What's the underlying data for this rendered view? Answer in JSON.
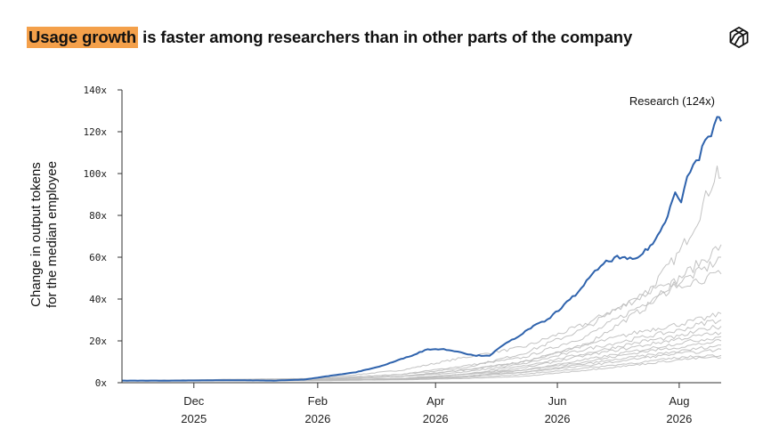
{
  "headline": {
    "highlight": "Usage growth",
    "rest": " is faster among researchers than in other parts of the company"
  },
  "brand": {
    "icon": "openai-knot-icon"
  },
  "colors": {
    "research": "#2f63ad",
    "others": "#bdbdbd",
    "highlight": "#f4a04a",
    "axis": "#333333"
  },
  "chart_data": {
    "type": "line",
    "ylabel": [
      "Change in output tokens",
      "for the median employee"
    ],
    "ylim": [
      0,
      140
    ],
    "yticks": [
      0,
      20,
      40,
      60,
      80,
      100,
      120,
      140
    ],
    "ytick_labels": [
      "0x",
      "20x",
      "40x",
      "60x",
      "80x",
      "100x",
      "120x",
      "140x"
    ],
    "xlim": [
      "2025-10-26",
      "2026-08-22"
    ],
    "xticks": [
      {
        "date": "2025-12-01",
        "line1": "Dec",
        "line2": "2025"
      },
      {
        "date": "2026-02-01",
        "line1": "Feb",
        "line2": "2026"
      },
      {
        "date": "2026-04-01",
        "line1": "Apr",
        "line2": "2026"
      },
      {
        "date": "2026-06-01",
        "line1": "Jun",
        "line2": "2026"
      },
      {
        "date": "2026-08-01",
        "line1": "Aug",
        "line2": "2026"
      }
    ],
    "annotations": [
      {
        "text": "Research (124x)",
        "series": "Research"
      }
    ],
    "grid": false,
    "highlight_series": {
      "name": "Research",
      "points": [
        [
          "2025-10-26",
          1
        ],
        [
          "2025-11-20",
          1
        ],
        [
          "2025-12-20",
          1.2
        ],
        [
          "2026-01-10",
          1
        ],
        [
          "2026-01-25",
          1.5
        ],
        [
          "2026-02-05",
          3
        ],
        [
          "2026-02-20",
          5
        ],
        [
          "2026-03-05",
          8
        ],
        [
          "2026-03-20",
          13
        ],
        [
          "2026-03-28",
          16
        ],
        [
          "2026-04-05",
          16
        ],
        [
          "2026-04-12",
          15
        ],
        [
          "2026-04-20",
          13
        ],
        [
          "2026-04-28",
          13
        ],
        [
          "2026-05-05",
          18
        ],
        [
          "2026-05-12",
          22
        ],
        [
          "2026-05-20",
          27
        ],
        [
          "2026-05-27",
          30
        ],
        [
          "2026-06-03",
          36
        ],
        [
          "2026-06-10",
          42
        ],
        [
          "2026-06-17",
          50
        ],
        [
          "2026-06-24",
          57
        ],
        [
          "2026-07-01",
          60
        ],
        [
          "2026-07-06",
          59
        ],
        [
          "2026-07-10",
          59
        ],
        [
          "2026-07-15",
          63
        ],
        [
          "2026-07-20",
          68
        ],
        [
          "2026-07-25",
          77
        ],
        [
          "2026-07-30",
          92
        ],
        [
          "2026-08-02",
          87
        ],
        [
          "2026-08-05",
          98
        ],
        [
          "2026-08-08",
          104
        ],
        [
          "2026-08-11",
          108
        ],
        [
          "2026-08-14",
          116
        ],
        [
          "2026-08-17",
          119
        ],
        [
          "2026-08-20",
          128
        ],
        [
          "2026-08-22",
          125
        ]
      ]
    },
    "series": [
      {
        "points": [
          [
            "2025-10-26",
            1
          ],
          [
            "2026-02-01",
            2
          ],
          [
            "2026-03-15",
            6
          ],
          [
            "2026-04-15",
            12
          ],
          [
            "2026-05-15",
            17
          ],
          [
            "2026-06-15",
            28
          ],
          [
            "2026-07-15",
            42
          ],
          [
            "2026-08-01",
            62
          ],
          [
            "2026-08-10",
            78
          ],
          [
            "2026-08-20",
            102
          ],
          [
            "2026-08-22",
            98
          ]
        ]
      },
      {
        "points": [
          [
            "2025-10-26",
            1
          ],
          [
            "2026-02-01",
            2
          ],
          [
            "2026-03-15",
            4
          ],
          [
            "2026-04-15",
            8
          ],
          [
            "2026-05-15",
            12
          ],
          [
            "2026-06-15",
            22
          ],
          [
            "2026-07-15",
            38
          ],
          [
            "2026-08-01",
            50
          ],
          [
            "2026-08-15",
            60
          ],
          [
            "2026-08-22",
            66
          ]
        ]
      },
      {
        "points": [
          [
            "2025-10-26",
            1
          ],
          [
            "2026-02-01",
            1.5
          ],
          [
            "2026-03-15",
            3
          ],
          [
            "2026-04-15",
            6
          ],
          [
            "2026-05-15",
            10
          ],
          [
            "2026-06-15",
            18
          ],
          [
            "2026-07-15",
            36
          ],
          [
            "2026-08-01",
            48
          ],
          [
            "2026-08-15",
            55
          ],
          [
            "2026-08-22",
            60
          ]
        ]
      },
      {
        "points": [
          [
            "2025-10-26",
            1
          ],
          [
            "2026-02-01",
            1.5
          ],
          [
            "2026-03-15",
            4
          ],
          [
            "2026-04-15",
            7
          ],
          [
            "2026-05-15",
            14
          ],
          [
            "2026-06-15",
            26
          ],
          [
            "2026-07-15",
            44
          ],
          [
            "2026-08-01",
            47
          ],
          [
            "2026-08-15",
            50
          ],
          [
            "2026-08-22",
            52
          ]
        ]
      },
      {
        "points": [
          [
            "2025-10-26",
            1
          ],
          [
            "2026-02-01",
            1.5
          ],
          [
            "2026-03-15",
            3
          ],
          [
            "2026-04-15",
            6
          ],
          [
            "2026-05-15",
            10
          ],
          [
            "2026-06-15",
            18
          ],
          [
            "2026-07-15",
            25
          ],
          [
            "2026-08-01",
            28
          ],
          [
            "2026-08-15",
            31
          ],
          [
            "2026-08-22",
            33
          ]
        ]
      },
      {
        "points": [
          [
            "2025-10-26",
            1
          ],
          [
            "2026-02-01",
            1.3
          ],
          [
            "2026-03-15",
            3
          ],
          [
            "2026-04-15",
            5
          ],
          [
            "2026-05-15",
            9
          ],
          [
            "2026-06-15",
            16
          ],
          [
            "2026-07-15",
            22
          ],
          [
            "2026-08-01",
            25
          ],
          [
            "2026-08-15",
            29
          ],
          [
            "2026-08-22",
            30
          ]
        ]
      },
      {
        "points": [
          [
            "2025-10-26",
            1
          ],
          [
            "2026-02-01",
            1.2
          ],
          [
            "2026-03-15",
            2
          ],
          [
            "2026-04-15",
            4
          ],
          [
            "2026-05-15",
            8
          ],
          [
            "2026-06-15",
            14
          ],
          [
            "2026-07-15",
            20
          ],
          [
            "2026-08-01",
            22
          ],
          [
            "2026-08-15",
            26
          ],
          [
            "2026-08-22",
            27
          ]
        ]
      },
      {
        "points": [
          [
            "2025-10-26",
            1
          ],
          [
            "2026-02-01",
            1.2
          ],
          [
            "2026-03-15",
            2
          ],
          [
            "2026-04-15",
            4
          ],
          [
            "2026-05-15",
            7
          ],
          [
            "2026-06-15",
            13
          ],
          [
            "2026-07-15",
            18
          ],
          [
            "2026-08-01",
            21
          ],
          [
            "2026-08-15",
            23
          ],
          [
            "2026-08-22",
            24
          ]
        ]
      },
      {
        "points": [
          [
            "2025-10-26",
            1
          ],
          [
            "2026-02-01",
            1.2
          ],
          [
            "2026-03-15",
            2
          ],
          [
            "2026-04-15",
            4
          ],
          [
            "2026-05-15",
            6
          ],
          [
            "2026-06-15",
            11
          ],
          [
            "2026-07-15",
            16
          ],
          [
            "2026-08-01",
            19
          ],
          [
            "2026-08-15",
            21
          ],
          [
            "2026-08-22",
            22
          ]
        ]
      },
      {
        "points": [
          [
            "2025-10-26",
            1
          ],
          [
            "2026-02-01",
            1.1
          ],
          [
            "2026-03-15",
            2
          ],
          [
            "2026-04-15",
            3
          ],
          [
            "2026-05-15",
            6
          ],
          [
            "2026-06-15",
            10
          ],
          [
            "2026-07-15",
            15
          ],
          [
            "2026-08-01",
            17
          ],
          [
            "2026-08-15",
            19
          ],
          [
            "2026-08-22",
            20
          ]
        ]
      },
      {
        "points": [
          [
            "2025-10-26",
            1
          ],
          [
            "2026-02-01",
            1.1
          ],
          [
            "2026-03-15",
            1.8
          ],
          [
            "2026-04-15",
            3
          ],
          [
            "2026-05-15",
            5
          ],
          [
            "2026-06-15",
            9
          ],
          [
            "2026-07-15",
            13
          ],
          [
            "2026-08-01",
            15
          ],
          [
            "2026-08-15",
            17
          ],
          [
            "2026-08-22",
            18
          ]
        ]
      },
      {
        "points": [
          [
            "2025-10-26",
            1
          ],
          [
            "2026-02-01",
            1.1
          ],
          [
            "2026-03-15",
            1.6
          ],
          [
            "2026-04-15",
            3
          ],
          [
            "2026-05-15",
            5
          ],
          [
            "2026-06-15",
            8
          ],
          [
            "2026-07-15",
            12
          ],
          [
            "2026-08-01",
            14
          ],
          [
            "2026-08-15",
            15
          ],
          [
            "2026-08-22",
            16
          ]
        ]
      },
      {
        "points": [
          [
            "2025-10-26",
            1
          ],
          [
            "2026-02-01",
            1
          ],
          [
            "2026-03-15",
            1.5
          ],
          [
            "2026-04-15",
            2.5
          ],
          [
            "2026-05-15",
            4
          ],
          [
            "2026-06-15",
            7
          ],
          [
            "2026-07-15",
            10
          ],
          [
            "2026-08-01",
            12
          ],
          [
            "2026-08-15",
            13
          ],
          [
            "2026-08-22",
            13
          ]
        ]
      },
      {
        "points": [
          [
            "2025-10-26",
            1
          ],
          [
            "2026-02-01",
            1
          ],
          [
            "2026-03-15",
            1.4
          ],
          [
            "2026-04-15",
            2
          ],
          [
            "2026-05-15",
            3
          ],
          [
            "2026-06-15",
            6
          ],
          [
            "2026-07-15",
            9
          ],
          [
            "2026-08-01",
            11
          ],
          [
            "2026-08-15",
            12
          ],
          [
            "2026-08-22",
            12
          ]
        ]
      }
    ]
  }
}
